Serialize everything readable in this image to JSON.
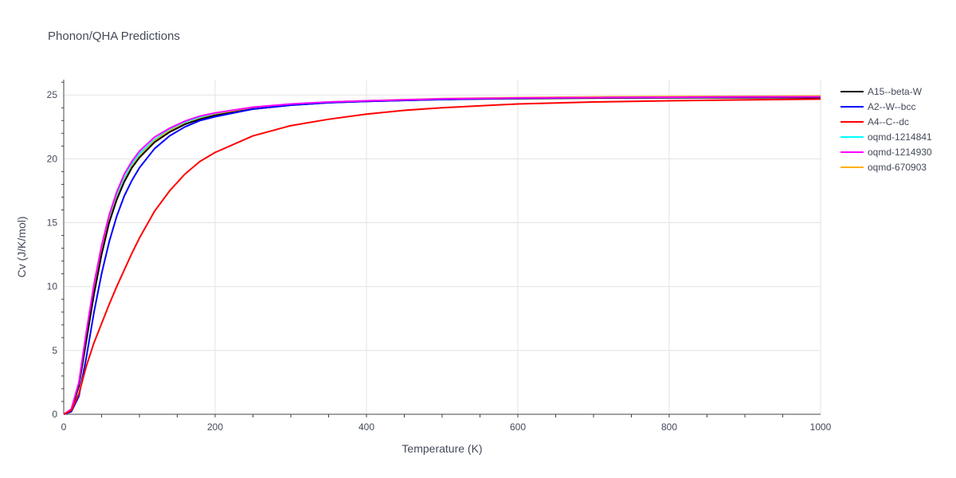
{
  "chart_data": {
    "type": "line",
    "title": "Phonon/QHA Predictions",
    "xlabel": "Temperature (K)",
    "ylabel": "Cv (J/K/mol)",
    "xlim": [
      0,
      1000
    ],
    "ylim": [
      0,
      26.2
    ],
    "xticks": [
      0,
      200,
      400,
      600,
      800,
      1000
    ],
    "yticks": [
      0,
      5,
      10,
      15,
      20,
      25
    ],
    "grid": true,
    "legend_position": "top-right",
    "series": [
      {
        "name": "A15--beta-W",
        "color": "#000000",
        "x": [
          0,
          10,
          20,
          30,
          40,
          50,
          60,
          70,
          80,
          90,
          100,
          120,
          140,
          160,
          180,
          200,
          250,
          300,
          350,
          400,
          500,
          600,
          700,
          800,
          900,
          1000
        ],
        "y": [
          0,
          0.3,
          2.2,
          5.8,
          9.4,
          12.5,
          15.0,
          16.8,
          18.2,
          19.3,
          20.1,
          21.3,
          22.1,
          22.7,
          23.1,
          23.4,
          23.9,
          24.2,
          24.4,
          24.5,
          24.65,
          24.72,
          24.76,
          24.78,
          24.79,
          24.8
        ]
      },
      {
        "name": "A2--W--bcc",
        "color": "#0000ff",
        "x": [
          0,
          10,
          20,
          30,
          40,
          50,
          60,
          70,
          80,
          90,
          100,
          120,
          140,
          160,
          180,
          200,
          250,
          300,
          350,
          400,
          500,
          600,
          700,
          800,
          900,
          1000
        ],
        "y": [
          0,
          0.2,
          1.4,
          4.5,
          8.0,
          11.0,
          13.5,
          15.5,
          17.1,
          18.3,
          19.3,
          20.8,
          21.8,
          22.5,
          23.0,
          23.3,
          23.9,
          24.2,
          24.4,
          24.5,
          24.65,
          24.75,
          24.8,
          24.82,
          24.84,
          24.85
        ]
      },
      {
        "name": "A4--C--dc",
        "color": "#ff0000",
        "x": [
          0,
          10,
          20,
          30,
          40,
          50,
          60,
          70,
          80,
          90,
          100,
          120,
          140,
          160,
          180,
          200,
          250,
          300,
          350,
          400,
          450,
          500,
          600,
          700,
          800,
          900,
          1000
        ],
        "y": [
          0,
          0.3,
          1.6,
          3.8,
          5.6,
          7.1,
          8.6,
          10.0,
          11.3,
          12.6,
          13.8,
          15.9,
          17.5,
          18.8,
          19.8,
          20.5,
          21.8,
          22.6,
          23.1,
          23.5,
          23.8,
          24.0,
          24.3,
          24.45,
          24.55,
          24.62,
          24.68
        ]
      },
      {
        "name": "oqmd-1214841",
        "color": "#00ffff",
        "x": [
          0,
          10,
          20,
          30,
          40,
          50,
          60,
          70,
          80,
          90,
          100,
          120,
          140,
          160,
          180,
          200,
          250,
          300,
          350,
          400,
          500,
          600,
          700,
          800,
          900,
          1000
        ],
        "y": [
          0,
          0.35,
          2.4,
          6.2,
          9.9,
          12.9,
          15.3,
          17.1,
          18.5,
          19.6,
          20.4,
          21.5,
          22.3,
          22.85,
          23.25,
          23.55,
          24.0,
          24.3,
          24.45,
          24.55,
          24.7,
          24.77,
          24.8,
          24.83,
          24.85,
          24.86
        ]
      },
      {
        "name": "oqmd-1214930",
        "color": "#ff00ff",
        "x": [
          0,
          10,
          20,
          30,
          40,
          50,
          60,
          70,
          80,
          90,
          100,
          120,
          140,
          160,
          180,
          200,
          250,
          300,
          350,
          400,
          500,
          600,
          700,
          800,
          900,
          1000
        ],
        "y": [
          0,
          0.4,
          2.5,
          6.5,
          10.2,
          13.2,
          15.6,
          17.4,
          18.8,
          19.8,
          20.6,
          21.7,
          22.4,
          22.95,
          23.35,
          23.6,
          24.05,
          24.3,
          24.45,
          24.55,
          24.7,
          24.77,
          24.8,
          24.83,
          24.85,
          24.86
        ]
      },
      {
        "name": "oqmd-670903",
        "color": "#ffb000",
        "x": [
          0,
          10,
          20,
          30,
          40,
          50,
          60,
          70,
          80,
          90,
          100,
          120,
          140,
          160,
          180,
          200,
          250,
          300,
          350,
          400,
          500,
          600,
          700,
          800,
          900,
          1000
        ],
        "y": [
          0,
          0.3,
          2.3,
          6.0,
          9.6,
          12.7,
          15.1,
          16.9,
          18.3,
          19.4,
          20.2,
          21.4,
          22.2,
          22.75,
          23.15,
          23.45,
          23.95,
          24.25,
          24.45,
          24.55,
          24.72,
          24.8,
          24.85,
          24.88,
          24.9,
          24.92
        ]
      }
    ]
  }
}
